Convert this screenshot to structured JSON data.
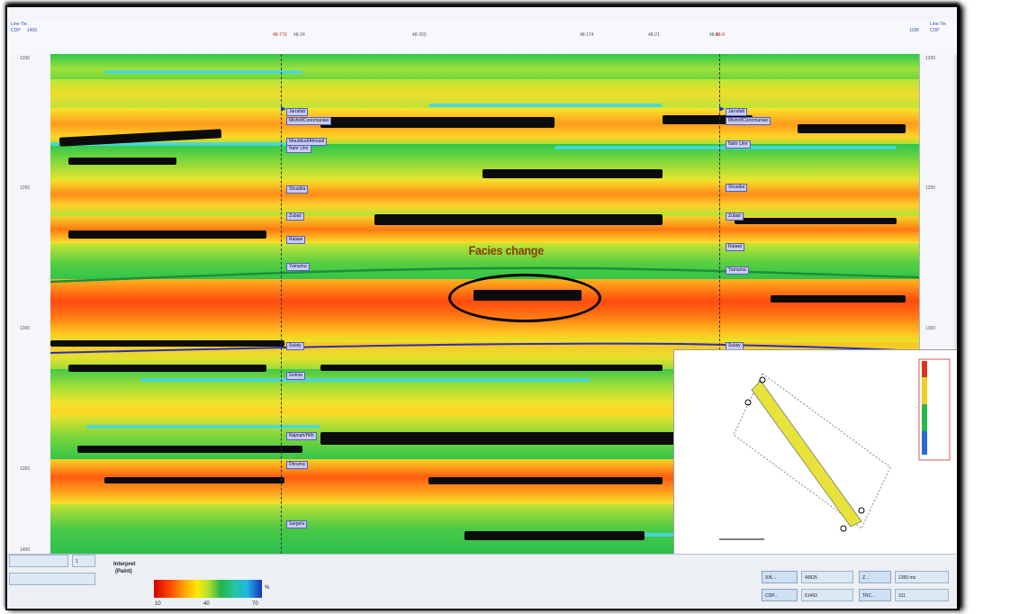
{
  "axis": {
    "top_left_labels": [
      "Line-Tie",
      "CDP",
      "1400"
    ],
    "top_right_labels": [
      "Line-Tie",
      "CDP",
      "1186"
    ],
    "top_ticks": [
      "48-773",
      "48-24",
      "48-203",
      "48-174",
      "48-21",
      "48-5",
      "48-9"
    ],
    "left_ticks": [
      "1200",
      "1250",
      "1300",
      "1350",
      "1400"
    ],
    "right_ticks": [
      "1200",
      "1250",
      "1300",
      "1350"
    ]
  },
  "annotation": {
    "text": "Facies change"
  },
  "wells": [
    {
      "name": "48-773",
      "markers": [
        "Jarrafah",
        "Mishrif/Cenomanian",
        "Mauddud/Ahmadi",
        "Nahr Umr",
        "Shuaiba",
        "Zubair",
        "Ratawi",
        "Yamama",
        "Sulaiy",
        "Gotnia",
        "Najmah/Hith",
        "Dhruma",
        "Sargelu"
      ]
    },
    {
      "name": "48-5",
      "markers": [
        "Jarrafah",
        "Mishrif/Cenomanian",
        "Nahr Umr",
        "Shuaiba",
        "Zubair",
        "Ratawi",
        "Yamama",
        "Sulaiy"
      ]
    }
  ],
  "bottom": {
    "interpret_label": "Interpret",
    "interpret_sub": "(Paint)",
    "colorbar_ticks": [
      "10",
      "40",
      "70"
    ],
    "colorbar_unit": "%",
    "fields": [
      {
        "label": "X/K...",
        "value": "49925"
      },
      {
        "label": "CDP...",
        "value": "51493"
      },
      {
        "label": "Z...",
        "value": "1350 ms"
      },
      {
        "label": "TRC...",
        "value": "311"
      }
    ],
    "small_inputs": [
      "",
      "1"
    ]
  },
  "colors": {
    "frame": "#111111",
    "horizon_green": "#1e8f3a",
    "horizon_blue": "#2a2fb5",
    "well_marker": "#1b3cc4",
    "facies_text": "#8a3b0a"
  }
}
